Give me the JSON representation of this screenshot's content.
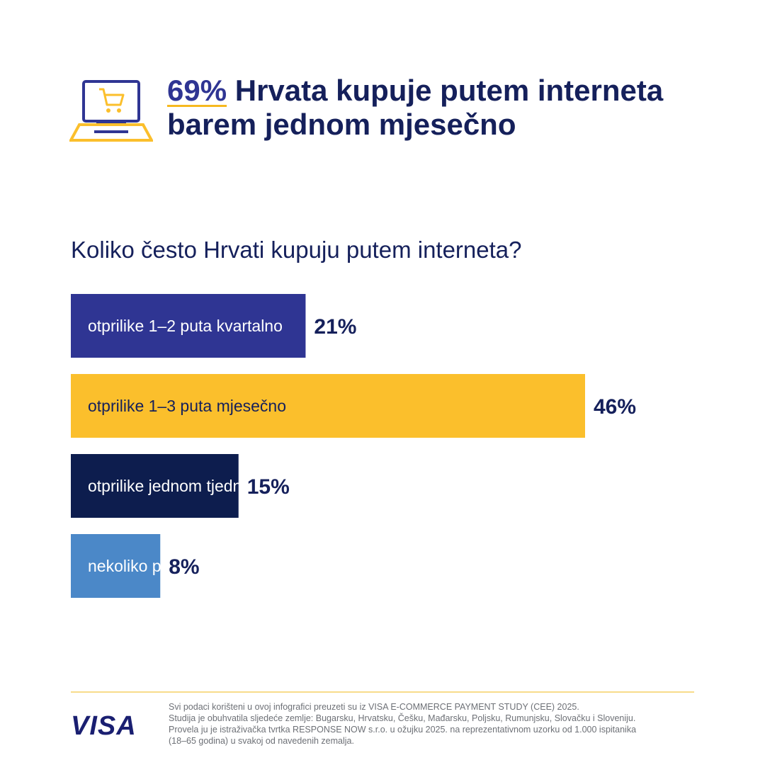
{
  "header": {
    "stat": "69%",
    "title_rest": " Hrvata kupuje putem interneta barem jednom mjesečno",
    "icon": "laptop-cart-icon"
  },
  "chart_data": {
    "type": "bar",
    "orientation": "horizontal",
    "title": "Koliko često Hrvati kupuju putem interneta?",
    "categories": [
      "otprilike 1–2 puta kvartalno",
      "otprilike 1–3 puta mjesečno",
      "otprilike jednom tjedno",
      "nekoliko puta tjedno"
    ],
    "values": [
      21,
      46,
      15,
      8
    ],
    "value_labels": [
      "21%",
      "46%",
      "15%",
      "8%"
    ],
    "colors": [
      "#2f3593",
      "#fbbf2c",
      "#0d1d4e",
      "#4b88c8"
    ],
    "xlabel": "",
    "ylabel": "",
    "xlim": [
      0,
      46
    ]
  },
  "footer": {
    "logo": "VISA",
    "notes": [
      "Svi podaci korišteni u ovoj infografici preuzeti su iz VISA E-COMMERCE PAYMENT STUDY (CEE) 2025.",
      "Studija je obuhvatila sljedeće zemlje: Bugarsku, Hrvatsku, Češku, Mađarsku, Poljsku, Rumunjsku, Slovačku i Sloveniju.",
      "Provela ju je istraživačka tvrtka RESPONSE NOW s.r.o. u ožujku 2025. na reprezentativnom uzorku od 1.000 ispitanika",
      "(18–65 godina) u svakoj od navedenih zemalja."
    ]
  }
}
